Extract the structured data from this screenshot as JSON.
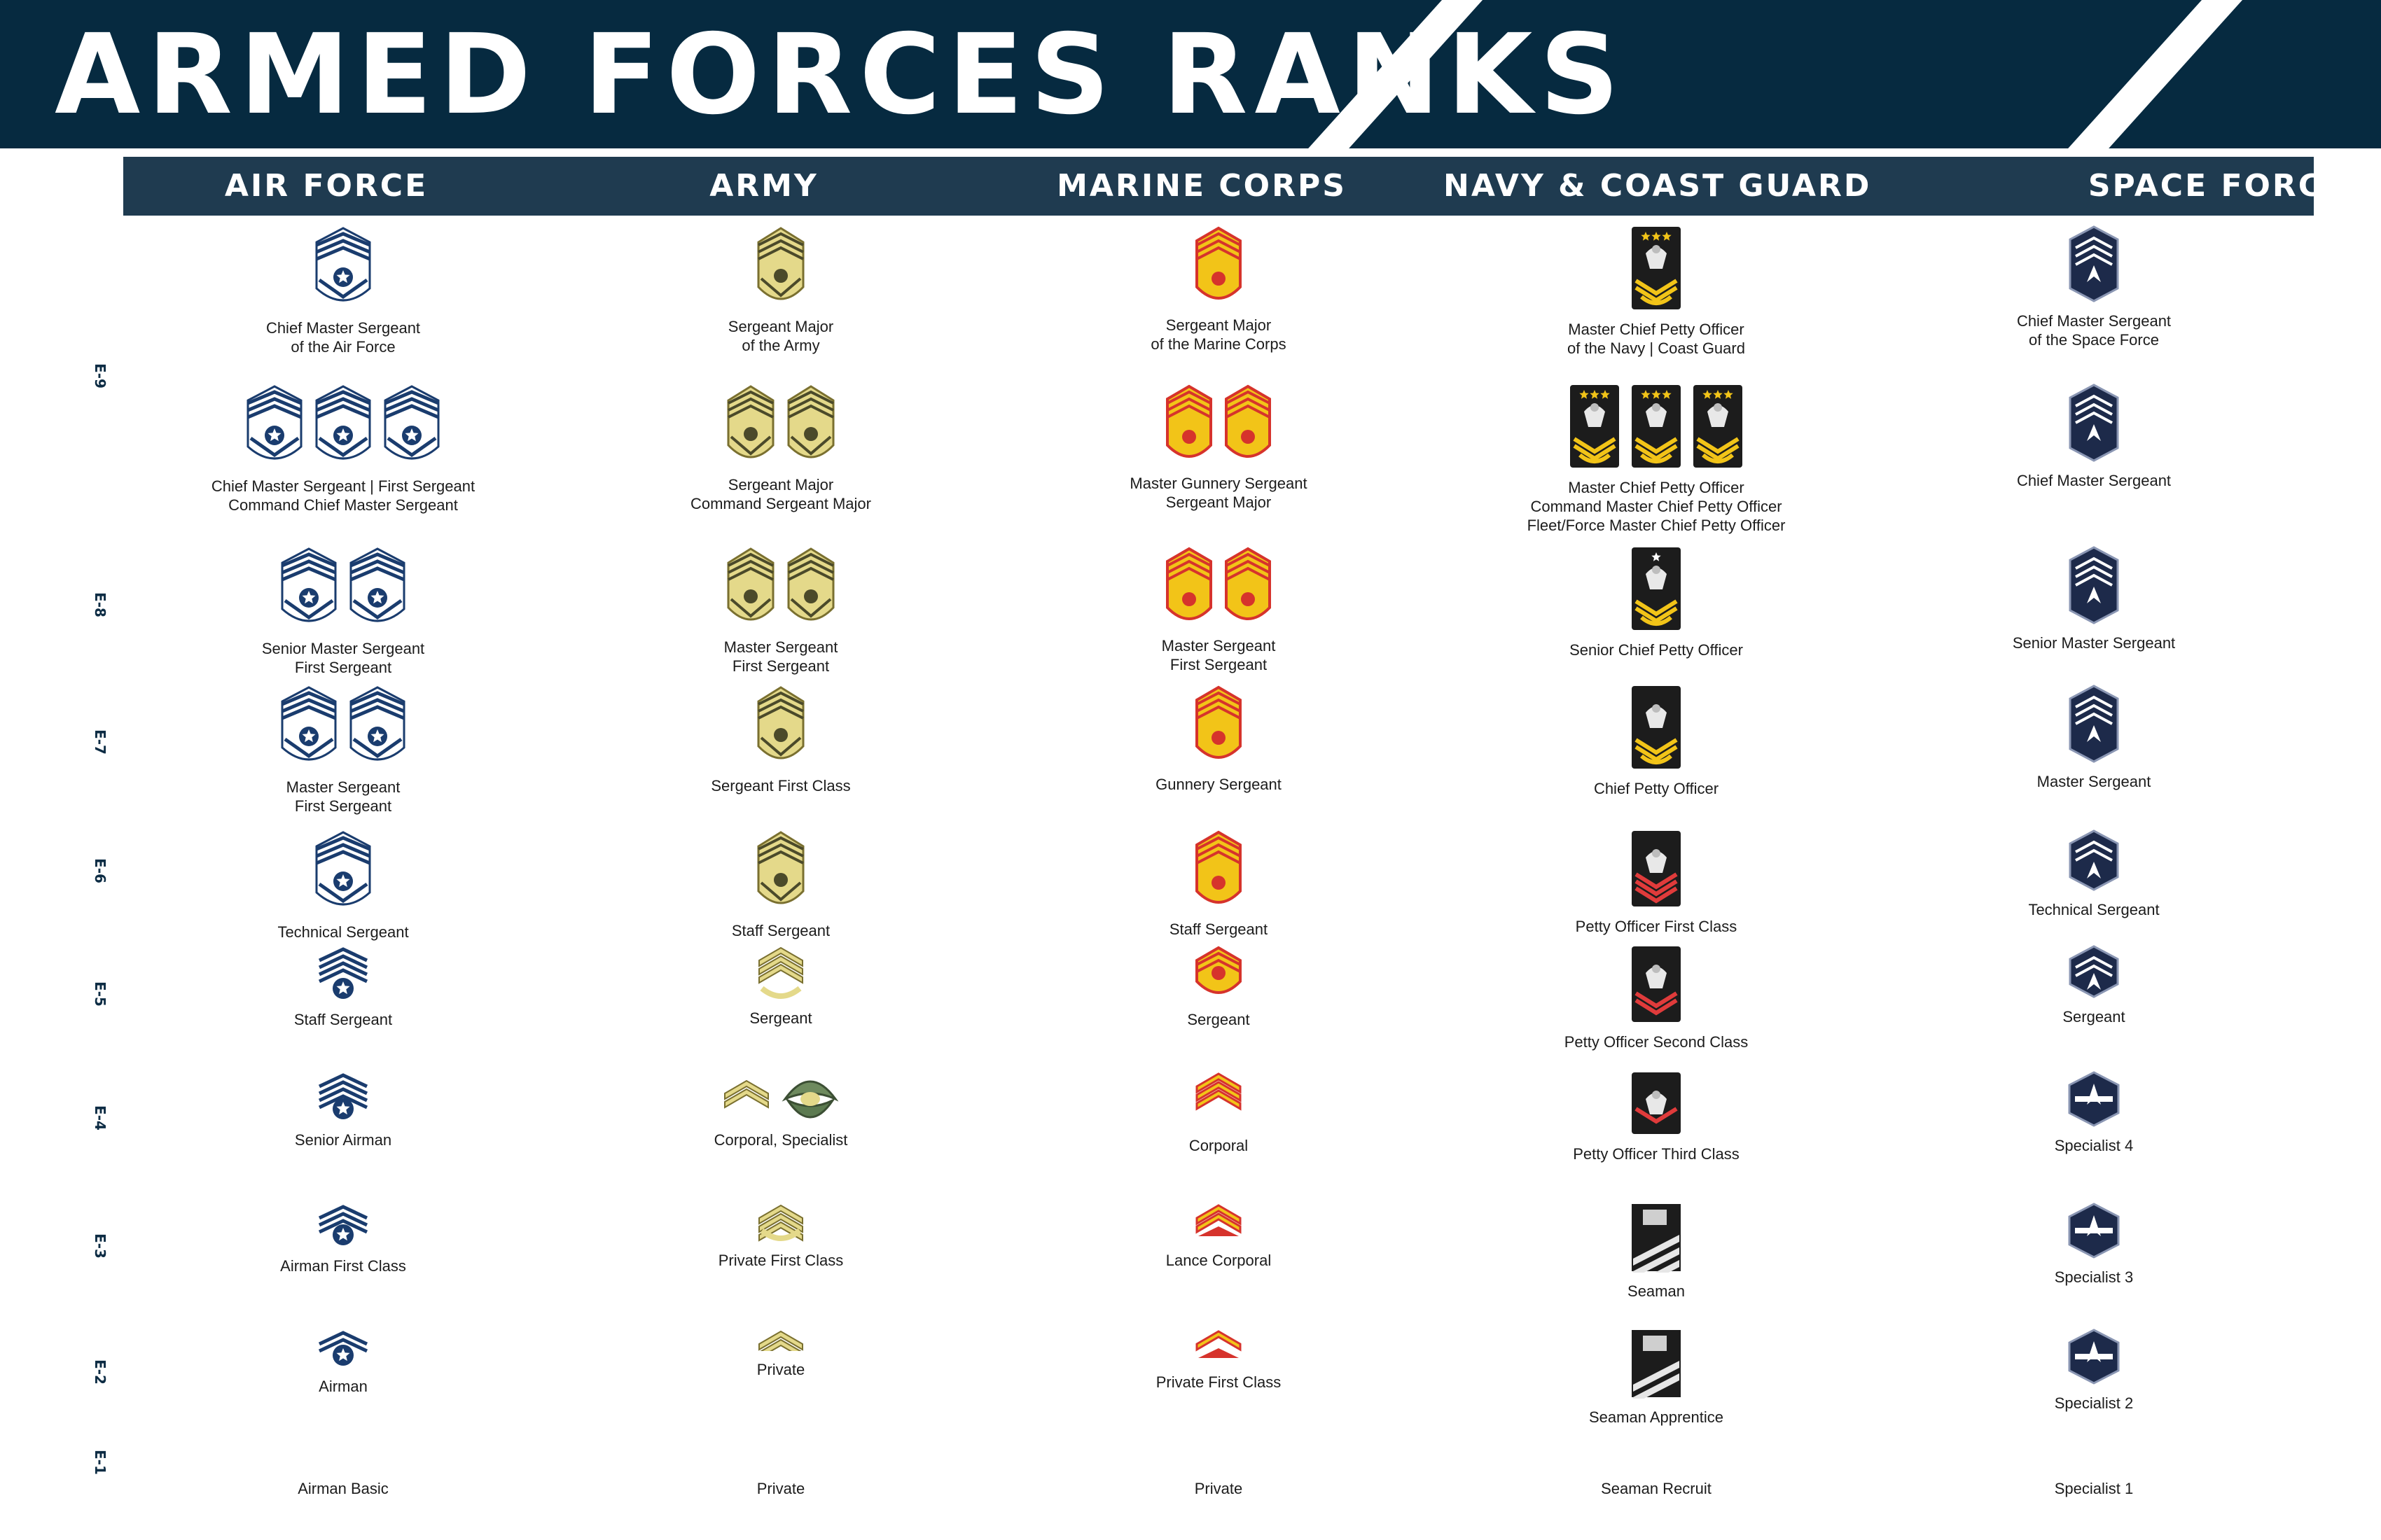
{
  "title": "ARMED FORCES RANKS",
  "columns": [
    "AIR FORCE",
    "ARMY",
    "MARINE CORPS",
    "NAVY & COAST GUARD",
    "SPACE FORCE"
  ],
  "grades": [
    "E-9",
    "E-8",
    "E-7",
    "E-6",
    "E-5",
    "E-4",
    "E-3",
    "E-2",
    "E-1"
  ],
  "colors": {
    "banner": "#062a40",
    "header_bar": "#1f3b50",
    "air_force": "#1a3c6e",
    "army_gold": "#e4d98a",
    "marine_red": "#d6332c",
    "marine_gold": "#f2c418",
    "navy_black": "#1c1c1c",
    "space_navy": "#1d2a4a"
  },
  "rows": [
    {
      "cells": [
        {
          "icon": "air-force-chevron-icon",
          "count": 1,
          "lines": [
            "Chief Master Sergeant",
            "of the Air Force"
          ]
        },
        {
          "icon": "army-chevron-icon",
          "count": 1,
          "lines": [
            "Sergeant Major",
            "of the Army"
          ]
        },
        {
          "icon": "marine-chevron-icon",
          "count": 1,
          "lines": [
            "Sergeant Major",
            "of the Marine Corps"
          ]
        },
        {
          "icon": "navy-rating-badge-icon",
          "count": 1,
          "lines": [
            "Master Chief Petty Officer",
            "of the Navy | Coast Guard"
          ]
        },
        {
          "icon": "space-force-chevron-icon",
          "count": 1,
          "lines": [
            "Chief Master Sergeant",
            "of the Space Force"
          ]
        }
      ]
    },
    {
      "cells": [
        {
          "icon": "air-force-chevron-icon",
          "count": 3,
          "lines": [
            "Chief Master Sergeant | First Sergeant",
            "Command Chief Master Sergeant"
          ]
        },
        {
          "icon": "army-chevron-icon",
          "count": 2,
          "lines": [
            "Sergeant Major",
            "Command Sergeant Major"
          ]
        },
        {
          "icon": "marine-chevron-icon",
          "count": 2,
          "lines": [
            "Master Gunnery Sergeant",
            "Sergeant Major"
          ]
        },
        {
          "icon": "navy-rating-badge-icon",
          "count": 3,
          "lines": [
            "Master Chief Petty Officer",
            "Command Master Chief Petty Officer",
            "Fleet/Force Master Chief Petty Officer"
          ]
        },
        {
          "icon": "space-force-chevron-icon",
          "count": 1,
          "lines": [
            "Chief Master Sergeant"
          ]
        }
      ]
    },
    {
      "cells": [
        {
          "icon": "air-force-chevron-icon",
          "count": 2,
          "lines": [
            "Senior Master Sergeant",
            "First Sergeant"
          ]
        },
        {
          "icon": "army-chevron-icon",
          "count": 2,
          "lines": [
            "Master Sergeant",
            "First Sergeant"
          ]
        },
        {
          "icon": "marine-chevron-icon",
          "count": 2,
          "lines": [
            "Master Sergeant",
            "First Sergeant"
          ]
        },
        {
          "icon": "navy-rating-badge-icon",
          "count": 1,
          "lines": [
            "Senior Chief Petty Officer"
          ]
        },
        {
          "icon": "space-force-chevron-icon",
          "count": 1,
          "lines": [
            "Senior Master Sergeant"
          ]
        }
      ]
    },
    {
      "cells": [
        {
          "icon": "air-force-chevron-icon",
          "count": 2,
          "lines": [
            "Master Sergeant",
            "First Sergeant"
          ]
        },
        {
          "icon": "army-chevron-icon",
          "count": 1,
          "lines": [
            "Sergeant First Class"
          ]
        },
        {
          "icon": "marine-chevron-icon",
          "count": 1,
          "lines": [
            "Gunnery Sergeant"
          ]
        },
        {
          "icon": "navy-rating-badge-icon",
          "count": 1,
          "lines": [
            "Chief Petty Officer"
          ]
        },
        {
          "icon": "space-force-chevron-icon",
          "count": 1,
          "lines": [
            "Master Sergeant"
          ]
        }
      ]
    },
    {
      "cells": [
        {
          "icon": "air-force-chevron-icon",
          "count": 1,
          "lines": [
            "Technical Sergeant"
          ]
        },
        {
          "icon": "army-chevron-icon",
          "count": 1,
          "lines": [
            "Staff Sergeant"
          ]
        },
        {
          "icon": "marine-chevron-icon",
          "count": 1,
          "lines": [
            "Staff Sergeant"
          ]
        },
        {
          "icon": "navy-rating-badge-icon",
          "count": 1,
          "lines": [
            "Petty Officer First Class"
          ]
        },
        {
          "icon": "space-force-chevron-icon",
          "count": 1,
          "lines": [
            "Technical Sergeant"
          ]
        }
      ]
    },
    {
      "cells": [
        {
          "icon": "air-force-chevron-icon",
          "count": 1,
          "lines": [
            "Staff Sergeant"
          ]
        },
        {
          "icon": "army-chevron-icon",
          "count": 1,
          "lines": [
            "Sergeant"
          ]
        },
        {
          "icon": "marine-chevron-icon",
          "count": 1,
          "lines": [
            "Sergeant"
          ]
        },
        {
          "icon": "navy-rating-badge-icon",
          "count": 1,
          "lines": [
            "Petty Officer Second Class"
          ]
        },
        {
          "icon": "space-force-chevron-icon",
          "count": 1,
          "lines": [
            "Sergeant"
          ]
        }
      ]
    },
    {
      "cells": [
        {
          "icon": "air-force-chevron-icon",
          "count": 1,
          "lines": [
            "Senior Airman"
          ]
        },
        {
          "icon": "army-chevron-icon",
          "count": 2,
          "lines": [
            "Corporal, Specialist"
          ]
        },
        {
          "icon": "marine-chevron-icon",
          "count": 1,
          "lines": [
            "Corporal"
          ]
        },
        {
          "icon": "navy-rating-badge-icon",
          "count": 1,
          "lines": [
            "Petty Officer Third Class"
          ]
        },
        {
          "icon": "space-force-hexagon-icon",
          "count": 1,
          "lines": [
            "Specialist 4"
          ]
        }
      ]
    },
    {
      "cells": [
        {
          "icon": "air-force-chevron-icon",
          "count": 1,
          "lines": [
            "Airman First Class"
          ]
        },
        {
          "icon": "army-chevron-icon",
          "count": 1,
          "lines": [
            "Private First Class"
          ]
        },
        {
          "icon": "marine-chevron-icon",
          "count": 1,
          "lines": [
            "Lance Corporal"
          ]
        },
        {
          "icon": "navy-stripes-icon",
          "count": 1,
          "lines": [
            "Seaman"
          ]
        },
        {
          "icon": "space-force-hexagon-icon",
          "count": 1,
          "lines": [
            "Specialist 3"
          ]
        }
      ]
    },
    {
      "cells": [
        {
          "icon": "air-force-chevron-icon",
          "count": 1,
          "lines": [
            "Airman"
          ]
        },
        {
          "icon": "army-chevron-icon",
          "count": 1,
          "lines": [
            "Private"
          ]
        },
        {
          "icon": "marine-chevron-icon",
          "count": 1,
          "lines": [
            "Private First Class"
          ]
        },
        {
          "icon": "navy-stripes-icon",
          "count": 1,
          "lines": [
            "Seaman Apprentice"
          ]
        },
        {
          "icon": "space-force-hexagon-icon",
          "count": 1,
          "lines": [
            "Specialist 2"
          ]
        }
      ]
    },
    {
      "cells": [
        {
          "icon": "",
          "count": 0,
          "lines": [
            "Airman Basic"
          ]
        },
        {
          "icon": "",
          "count": 0,
          "lines": [
            "Private"
          ]
        },
        {
          "icon": "",
          "count": 0,
          "lines": [
            "Private"
          ]
        },
        {
          "icon": "",
          "count": 0,
          "lines": [
            "Seaman Recruit"
          ]
        },
        {
          "icon": "",
          "count": 0,
          "lines": [
            "Specialist 1"
          ]
        }
      ]
    }
  ]
}
